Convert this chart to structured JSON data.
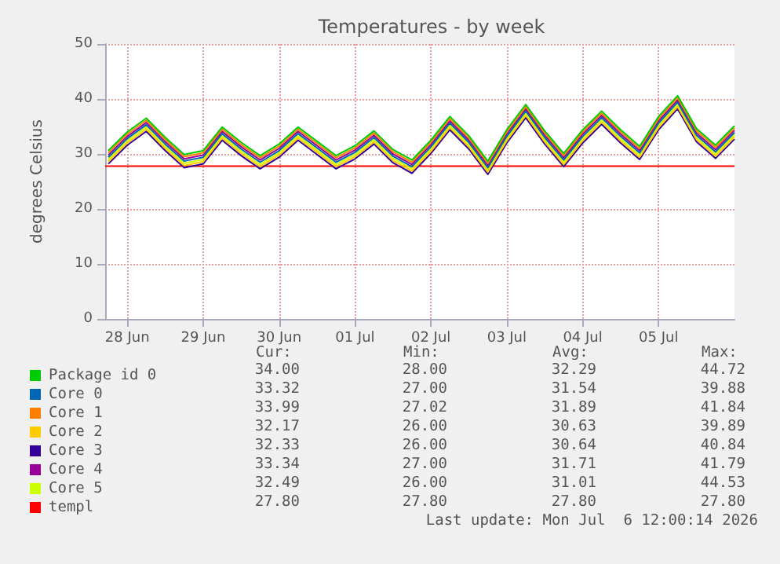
{
  "chart_data": {
    "type": "line",
    "title": "Temperatures - by week",
    "ylabel": "degrees Celsius",
    "x": [
      "2026-06-28T06:00",
      "2026-06-28T12:00",
      "2026-06-28T18:00",
      "2026-06-29T00:00",
      "2026-06-29T06:00",
      "2026-06-29T12:00",
      "2026-06-29T18:00",
      "2026-06-30T00:00",
      "2026-06-30T06:00",
      "2026-06-30T12:00",
      "2026-06-30T18:00",
      "2026-07-01T00:00",
      "2026-07-01T06:00",
      "2026-07-01T12:00",
      "2026-07-01T18:00",
      "2026-07-02T00:00",
      "2026-07-02T06:00",
      "2026-07-02T12:00",
      "2026-07-02T18:00",
      "2026-07-03T00:00",
      "2026-07-03T06:00",
      "2026-07-03T12:00",
      "2026-07-03T18:00",
      "2026-07-04T00:00",
      "2026-07-04T06:00",
      "2026-07-04T12:00",
      "2026-07-04T18:00",
      "2026-07-05T00:00",
      "2026-07-05T06:00",
      "2026-07-05T12:00",
      "2026-07-05T18:00",
      "2026-07-06T00:00",
      "2026-07-06T06:00",
      "2026-07-06T12:00"
    ],
    "series": [
      {
        "name": "Package id 0",
        "color": "#00cc00",
        "values": [
          30.6,
          34.0,
          36.5,
          33.0,
          29.9,
          30.6,
          34.9,
          32.1,
          29.7,
          31.8,
          34.9,
          32.3,
          29.7,
          31.5,
          34.2,
          30.8,
          28.9,
          32.5,
          36.8,
          33.3,
          28.7,
          34.4,
          39.0,
          34.2,
          30.1,
          34.4,
          37.8,
          34.4,
          31.4,
          36.8,
          40.6,
          34.6,
          31.6,
          35.1
        ]
      },
      {
        "name": "Core 0",
        "color": "#0066b3",
        "values": [
          29.4,
          32.8,
          35.3,
          31.8,
          28.7,
          29.4,
          33.7,
          30.9,
          28.5,
          30.6,
          33.7,
          31.1,
          28.5,
          30.3,
          33.0,
          29.6,
          27.7,
          31.3,
          35.6,
          32.1,
          27.5,
          33.2,
          37.8,
          33.0,
          28.9,
          33.2,
          36.6,
          33.2,
          30.2,
          35.6,
          39.4,
          33.4,
          30.4,
          33.9
        ]
      },
      {
        "name": "Core 1",
        "color": "#ff8000",
        "values": [
          30.2,
          33.6,
          36.1,
          32.6,
          29.5,
          30.2,
          34.5,
          31.7,
          29.3,
          31.4,
          34.5,
          31.9,
          29.3,
          31.1,
          33.8,
          30.4,
          28.5,
          32.1,
          36.4,
          32.9,
          28.3,
          34.0,
          38.6,
          33.8,
          29.7,
          34.0,
          37.4,
          34.0,
          31.0,
          36.4,
          40.2,
          34.2,
          31.2,
          34.7
        ]
      },
      {
        "name": "Core 2",
        "color": "#ffcc00",
        "values": [
          28.6,
          32.0,
          34.5,
          31.0,
          27.9,
          28.6,
          32.9,
          30.1,
          27.7,
          29.8,
          32.9,
          30.3,
          27.7,
          29.5,
          32.2,
          28.8,
          26.9,
          30.5,
          34.8,
          31.3,
          26.7,
          32.4,
          37.0,
          32.2,
          28.1,
          32.4,
          35.8,
          32.4,
          29.4,
          34.8,
          38.6,
          32.6,
          29.6,
          33.1
        ]
      },
      {
        "name": "Core 3",
        "color": "#330099",
        "values": [
          28.2,
          31.6,
          34.1,
          30.6,
          27.5,
          28.2,
          32.5,
          29.7,
          27.3,
          29.4,
          32.5,
          29.9,
          27.3,
          29.1,
          31.8,
          28.4,
          26.5,
          30.1,
          34.4,
          30.9,
          26.3,
          32.0,
          36.6,
          31.8,
          27.7,
          32.0,
          35.4,
          32.0,
          29.0,
          34.4,
          38.2,
          32.2,
          29.2,
          32.7
        ]
      },
      {
        "name": "Core 4",
        "color": "#990099",
        "values": [
          29.8,
          33.2,
          35.7,
          32.2,
          29.1,
          29.8,
          34.1,
          31.3,
          28.9,
          31.0,
          34.1,
          31.5,
          28.9,
          30.7,
          33.4,
          30.0,
          28.1,
          31.7,
          36.0,
          32.5,
          27.9,
          33.6,
          38.2,
          33.4,
          29.3,
          33.6,
          37.0,
          33.6,
          30.6,
          36.0,
          39.8,
          33.8,
          30.8,
          34.3
        ]
      },
      {
        "name": "Core 5",
        "color": "#ccff00",
        "values": [
          29.0,
          32.4,
          34.9,
          31.4,
          28.3,
          29.0,
          33.3,
          30.5,
          28.1,
          30.2,
          33.3,
          30.7,
          28.1,
          29.9,
          32.6,
          29.2,
          27.3,
          30.9,
          35.2,
          31.7,
          27.1,
          32.8,
          37.4,
          32.6,
          28.5,
          32.8,
          36.2,
          32.8,
          29.8,
          35.2,
          39.0,
          33.0,
          30.0,
          33.5
        ]
      },
      {
        "name": "templ",
        "color": "#ff0000",
        "x": [
          "2026-06-28T05:00",
          "2026-07-06T12:00"
        ],
        "values": [
          27.8,
          27.8
        ]
      }
    ],
    "xlim": [
      "2026-06-28T05:00",
      "2026-07-06T12:00"
    ],
    "xticks": [
      {
        "value": "2026-06-28T12:00",
        "label": "28 Jun"
      },
      {
        "value": "2026-06-29T12:00",
        "label": "29 Jun"
      },
      {
        "value": "2026-06-30T12:00",
        "label": "30 Jun"
      },
      {
        "value": "2026-07-01T12:00",
        "label": "01 Jul"
      },
      {
        "value": "2026-07-02T12:00",
        "label": "02 Jul"
      },
      {
        "value": "2026-07-03T12:00",
        "label": "03 Jul"
      },
      {
        "value": "2026-07-04T12:00",
        "label": "04 Jul"
      },
      {
        "value": "2026-07-05T12:00",
        "label": "05 Jul"
      }
    ],
    "ylim": [
      0,
      50
    ],
    "yticks": [
      0,
      10,
      20,
      30,
      40,
      50
    ],
    "grid": true,
    "legend": "bottom left",
    "marker": "none",
    "line_style": "solid",
    "annotations": [
      "Cur:",
      "Min:",
      "Avg:",
      "Max:",
      "34.00",
      "28.00",
      "32.29",
      "44.72",
      "33.32",
      "27.00",
      "31.54",
      "39.88",
      "33.99",
      "27.02",
      "31.89",
      "41.84",
      "32.17",
      "26.00",
      "30.63",
      "39.89",
      "32.33",
      "26.00",
      "30.64",
      "40.84",
      "33.34",
      "27.00",
      "31.71",
      "41.79",
      "32.49",
      "26.00",
      "31.01",
      "44.53",
      "27.80",
      "27.80",
      "27.80",
      "27.80",
      "Last update: Mon Jul  6 12:00:14 2026"
    ]
  }
}
